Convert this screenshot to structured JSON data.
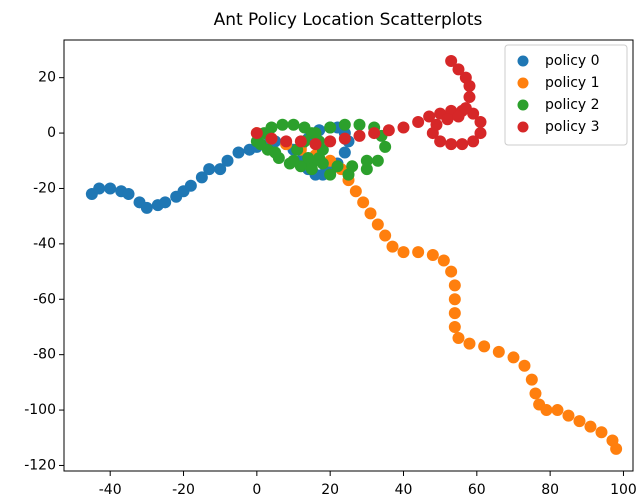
{
  "chart_data": {
    "type": "scatter",
    "title": "Ant Policy Location Scatterplots",
    "xlim": [
      -52.6,
      102.6
    ],
    "ylim": [
      -122,
      33.6
    ],
    "xticks": [
      -40,
      -20,
      0,
      20,
      40,
      60,
      80,
      100
    ],
    "yticks": [
      -120,
      -100,
      -80,
      -60,
      -40,
      -20,
      0,
      20
    ],
    "legend": "upper right",
    "series": [
      {
        "name": "policy 0",
        "color": "#1f77b4",
        "x": [
          -45,
          -43,
          -40,
          -37,
          -35,
          -32,
          -30,
          -27,
          -25,
          -22,
          -20,
          -18,
          -15,
          -13,
          -10,
          -8,
          -5,
          -2,
          0,
          3,
          5,
          8,
          10,
          12,
          14,
          16,
          18,
          20,
          22,
          24,
          25,
          24,
          22,
          20,
          17,
          14,
          12
        ],
        "y": [
          -22,
          -20,
          -20,
          -21,
          -22,
          -25,
          -27,
          -26,
          -25,
          -23,
          -21,
          -19,
          -16,
          -13,
          -13,
          -10,
          -7,
          -6,
          -5,
          -4,
          -3,
          -4,
          -6,
          -10,
          -13,
          -15,
          -15,
          -14,
          -11,
          -7,
          -3,
          0,
          2,
          2,
          1,
          -2,
          -5
        ]
      },
      {
        "name": "policy 1",
        "color": "#ff7f0e",
        "x": [
          0,
          4,
          8,
          12,
          16,
          20,
          23,
          25,
          27,
          29,
          31,
          33,
          35,
          37,
          40,
          44,
          48,
          51,
          53,
          54,
          54,
          54,
          54,
          55,
          58,
          62,
          66,
          70,
          73,
          75,
          76,
          77,
          79,
          82,
          85,
          88,
          91,
          94,
          97,
          98
        ],
        "y": [
          0,
          -2,
          -4,
          -6,
          -8,
          -10,
          -13,
          -17,
          -21,
          -25,
          -29,
          -33,
          -37,
          -41,
          -43,
          -43,
          -44,
          -46,
          -50,
          -55,
          -60,
          -65,
          -70,
          -74,
          -76,
          -77,
          -79,
          -81,
          -84,
          -89,
          -94,
          -98,
          -100,
          -100,
          -102,
          -104,
          -106,
          -108,
          -111,
          -114
        ]
      },
      {
        "name": "policy 2",
        "color": "#2ca02c",
        "x": [
          0,
          2,
          4,
          7,
          10,
          13,
          15,
          17,
          18,
          17,
          15,
          12,
          9,
          6,
          3,
          1,
          5,
          10,
          15,
          20,
          25,
          30,
          33,
          35,
          34,
          32,
          28,
          24,
          20,
          16,
          13,
          11,
          14,
          18,
          22,
          26,
          30
        ],
        "y": [
          -3,
          0,
          2,
          3,
          3,
          2,
          0,
          -3,
          -6,
          -9,
          -11,
          -12,
          -11,
          -9,
          -6,
          -4,
          -7,
          -10,
          -13,
          -15,
          -15,
          -13,
          -10,
          -5,
          -1,
          2,
          3,
          3,
          2,
          0,
          -3,
          -6,
          -9,
          -11,
          -12,
          -12,
          -10
        ]
      },
      {
        "name": "policy 3",
        "color": "#d62728",
        "x": [
          0,
          4,
          8,
          12,
          16,
          20,
          24,
          28,
          32,
          36,
          40,
          44,
          47,
          50,
          53,
          56,
          59,
          61,
          61,
          59,
          56,
          53,
          50,
          48,
          49,
          52,
          55,
          57,
          58,
          58,
          57,
          55,
          53
        ],
        "y": [
          0,
          -2,
          -3,
          -3,
          -4,
          -3,
          -2,
          -1,
          0,
          1,
          2,
          4,
          6,
          7,
          8,
          8,
          7,
          4,
          0,
          -3,
          -4,
          -4,
          -3,
          0,
          3,
          5,
          6,
          9,
          13,
          17,
          20,
          23,
          26
        ]
      }
    ]
  }
}
